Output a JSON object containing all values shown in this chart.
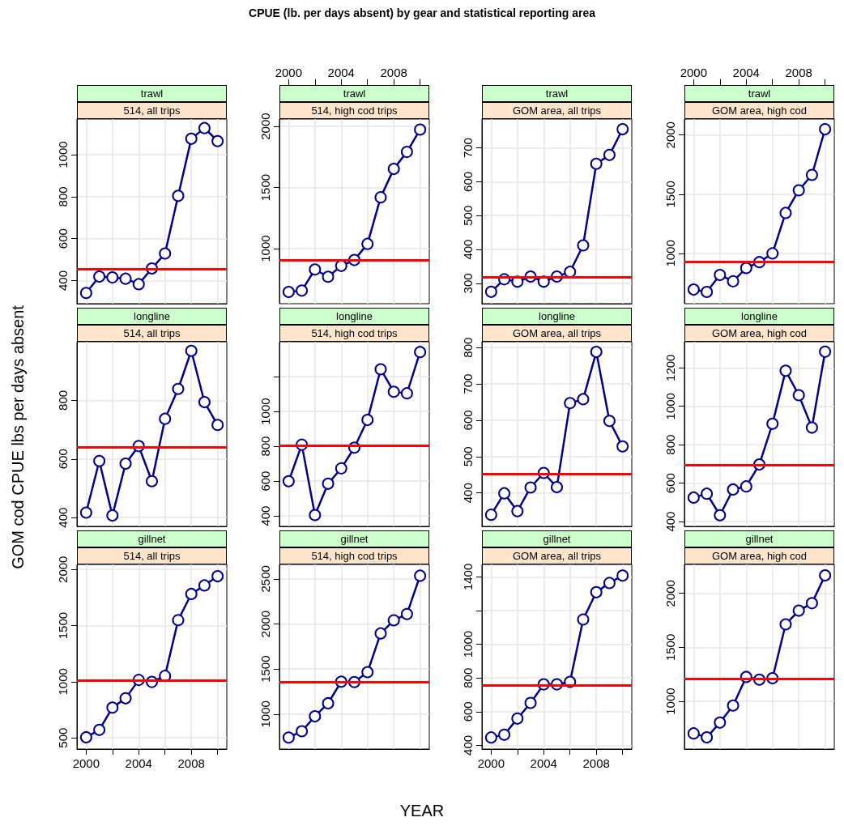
{
  "chart_data": [
    {
      "type": "line",
      "title": "trawl",
      "subtitle": "514, all trips",
      "annotations": [
        "CPUE (lb. per days absent) by gear and statistical reporting area"
      ],
      "categories": [
        null,
        null,
        null,
        null,
        null,
        null,
        null,
        null,
        null,
        null,
        null
      ],
      "ylim": [
        290,
        1170
      ],
      "yticks": [
        400,
        600,
        800,
        1000
      ],
      "values": [
        341,
        419,
        415,
        409,
        383,
        458,
        529,
        804,
        1076,
        1127,
        1065
      ],
      "color": "#00008b",
      "marker": "circle",
      "line_style": "solid",
      "grid": true,
      "ref_lines": [
        {
          "axis": "y",
          "value": 454,
          "color": "#ff0000"
        }
      ]
    },
    {
      "type": "line",
      "title": "trawl",
      "subtitle": "514, high cod trips",
      "x": [
        2000,
        2001,
        2002,
        2003,
        2004,
        2005,
        2006,
        2007,
        2008,
        2009,
        2010
      ],
      "xlim": [
        1999.3,
        2010.7
      ],
      "xticks": [
        2000,
        {
          "value": 2002,
          "label": null
        },
        2004,
        {
          "value": 2006,
          "label": null
        },
        2008,
        {
          "value": 2010,
          "label": null
        }
      ],
      "ylim": [
        550,
        2060
      ],
      "yticks": [
        1000,
        1500,
        2000
      ],
      "values": [
        646,
        657,
        830,
        770,
        859,
        907,
        1039,
        1420,
        1652,
        1791,
        1974
      ],
      "color": "#00008b",
      "marker": "circle",
      "line_style": "solid",
      "grid": true,
      "ref_lines": [
        {
          "axis": "y",
          "value": 907,
          "color": "#ff0000"
        }
      ]
    },
    {
      "type": "line",
      "title": "trawl",
      "subtitle": "GOM area, all trips",
      "categories": [
        null,
        null,
        null,
        null,
        null,
        null,
        null,
        null,
        null,
        null,
        null
      ],
      "ylim": [
        240,
        785
      ],
      "yticks": [
        300,
        400,
        500,
        600,
        700
      ],
      "values": [
        275,
        312,
        305,
        320,
        305,
        320,
        334,
        412,
        653,
        679,
        755
      ],
      "color": "#00008b",
      "marker": "circle",
      "line_style": "solid",
      "grid": true,
      "ref_lines": [
        {
          "axis": "y",
          "value": 318,
          "color": "#ff0000"
        }
      ]
    },
    {
      "type": "line",
      "title": "trawl",
      "subtitle": "GOM area, high cod",
      "x": [
        2000,
        2001,
        2002,
        2003,
        2004,
        2005,
        2006,
        2007,
        2008,
        2009,
        2010
      ],
      "xlim": [
        1999.3,
        2010.7
      ],
      "xticks": [
        2000,
        {
          "value": 2002,
          "label": null
        },
        2004,
        {
          "value": 2006,
          "label": null
        },
        2008,
        {
          "value": 2010,
          "label": null
        }
      ],
      "ylim": [
        575,
        2135
      ],
      "yticks": [
        1000,
        1500,
        2000
      ],
      "values": [
        694,
        674,
        818,
        764,
        876,
        926,
        1000,
        1342,
        1533,
        1663,
        2049
      ],
      "color": "#00008b",
      "marker": "circle",
      "line_style": "solid",
      "grid": true,
      "ref_lines": [
        {
          "axis": "y",
          "value": 926,
          "color": "#ff0000"
        }
      ]
    },
    {
      "type": "line",
      "title": "longline",
      "subtitle": "514, all trips",
      "ylabel": "GOM cod CPUE lbs per days absent",
      "categories": [
        null,
        null,
        null,
        null,
        null,
        null,
        null,
        null,
        null,
        null,
        null
      ],
      "ylim": [
        370,
        1000
      ],
      "yticks": [
        400,
        600,
        800
      ],
      "values": [
        417,
        593,
        407,
        584,
        644,
        524,
        737,
        839,
        969,
        794,
        716
      ],
      "color": "#00008b",
      "marker": "circle",
      "line_style": "solid",
      "grid": true,
      "ref_lines": [
        {
          "axis": "y",
          "value": 641,
          "color": "#ff0000"
        }
      ]
    },
    {
      "type": "line",
      "title": "longline",
      "subtitle": "514, high cod trips",
      "categories": [
        null,
        null,
        null,
        null,
        null,
        null,
        null,
        null,
        null,
        null,
        null
      ],
      "ylim": [
        340,
        1400
      ],
      "yticks": [
        400,
        600,
        800,
        1000,
        {
          "value": 1200,
          "label": null
        }
      ],
      "values": [
        599,
        809,
        405,
        585,
        673,
        792,
        951,
        1242,
        1113,
        1104,
        1341
      ],
      "color": "#00008b",
      "marker": "circle",
      "line_style": "solid",
      "grid": true,
      "ref_lines": [
        {
          "axis": "y",
          "value": 806,
          "color": "#ff0000"
        }
      ]
    },
    {
      "type": "line",
      "title": "longline",
      "subtitle": "GOM area, all trips",
      "categories": [
        null,
        null,
        null,
        null,
        null,
        null,
        null,
        null,
        null,
        null,
        null
      ],
      "ylim": [
        308,
        816
      ],
      "yticks": [
        400,
        500,
        600,
        700,
        800
      ],
      "values": [
        340,
        399,
        350,
        415,
        455,
        416,
        647,
        658,
        788,
        598,
        528
      ],
      "color": "#00008b",
      "marker": "circle",
      "line_style": "solid",
      "grid": true,
      "ref_lines": [
        {
          "axis": "y",
          "value": 452,
          "color": "#ff0000"
        }
      ]
    },
    {
      "type": "line",
      "title": "longline",
      "subtitle": "GOM area, high cod",
      "categories": [
        null,
        null,
        null,
        null,
        null,
        null,
        null,
        null,
        null,
        null,
        null
      ],
      "ylim": [
        375,
        1336
      ],
      "yticks": [
        400,
        600,
        800,
        1000,
        1200
      ],
      "values": [
        525,
        545,
        433,
        567,
        583,
        697,
        909,
        1185,
        1058,
        889,
        1284
      ],
      "color": "#00008b",
      "marker": "circle",
      "line_style": "solid",
      "grid": true,
      "ref_lines": [
        {
          "axis": "y",
          "value": 693,
          "color": "#ff0000"
        }
      ]
    },
    {
      "type": "line",
      "title": "gillnet",
      "subtitle": "514, all trips",
      "x": [
        2000,
        2001,
        2002,
        2003,
        2004,
        2005,
        2006,
        2007,
        2008,
        2009,
        2010
      ],
      "xlim": [
        1999.3,
        2010.7
      ],
      "xticks": [
        2000,
        {
          "value": 2002,
          "label": null
        },
        2004,
        {
          "value": 2006,
          "label": null
        },
        2008,
        {
          "value": 2010,
          "label": null
        }
      ],
      "ylim": [
        400,
        2045
      ],
      "yticks": [
        500,
        1000,
        1500,
        2000
      ],
      "values": [
        505,
        571,
        770,
        852,
        1016,
        998,
        1052,
        1549,
        1782,
        1858,
        1940
      ],
      "color": "#00008b",
      "marker": "circle",
      "line_style": "solid",
      "grid": true,
      "ref_lines": [
        {
          "axis": "y",
          "value": 1012,
          "color": "#ff0000"
        }
      ]
    },
    {
      "type": "line",
      "title": "gillnet",
      "subtitle": "514, high cod trips",
      "categories": [
        null,
        null,
        null,
        null,
        null,
        null,
        null,
        null,
        null,
        null,
        null
      ],
      "ylim": [
        612,
        2660
      ],
      "yticks": [
        1000,
        1500,
        2000,
        2500
      ],
      "values": [
        740,
        810,
        975,
        1120,
        1360,
        1355,
        1465,
        1895,
        2040,
        2110,
        2535
      ],
      "color": "#00008b",
      "marker": "circle",
      "line_style": "solid",
      "grid": true,
      "ref_lines": [
        {
          "axis": "y",
          "value": 1355,
          "color": "#ff0000"
        }
      ]
    },
    {
      "type": "line",
      "title": "gillnet",
      "subtitle": "GOM area, all trips",
      "xlabel": "YEAR",
      "x": [
        2000,
        2001,
        2002,
        2003,
        2004,
        2005,
        2006,
        2007,
        2008,
        2009,
        2010
      ],
      "xlim": [
        1999.3,
        2010.7
      ],
      "xticks": [
        2000,
        {
          "value": 2002,
          "label": null
        },
        2004,
        {
          "value": 2006,
          "label": null
        },
        2008,
        {
          "value": 2010,
          "label": null
        }
      ],
      "ylim": [
        378,
        1474
      ],
      "yticks": [
        400,
        600,
        800,
        1000,
        {
          "value": 1200,
          "label": null
        },
        1400
      ],
      "values": [
        447,
        463,
        559,
        652,
        762,
        762,
        777,
        1147,
        1309,
        1364,
        1408
      ],
      "color": "#00008b",
      "marker": "circle",
      "line_style": "solid",
      "grid": true,
      "ref_lines": [
        {
          "axis": "y",
          "value": 757,
          "color": "#ff0000"
        }
      ]
    },
    {
      "type": "line",
      "title": "gillnet",
      "subtitle": "GOM area, high cod",
      "categories": [
        null,
        null,
        null,
        null,
        null,
        null,
        null,
        null,
        null,
        null,
        null
      ],
      "ylim": [
        558,
        2268
      ],
      "yticks": [
        1000,
        1500,
        2000
      ],
      "values": [
        703,
        666,
        803,
        961,
        1226,
        1201,
        1214,
        1713,
        1840,
        1909,
        2167
      ],
      "color": "#00008b",
      "marker": "circle",
      "line_style": "solid",
      "grid": true,
      "ref_lines": [
        {
          "axis": "y",
          "value": 1209,
          "color": "#ff0000"
        }
      ]
    }
  ]
}
